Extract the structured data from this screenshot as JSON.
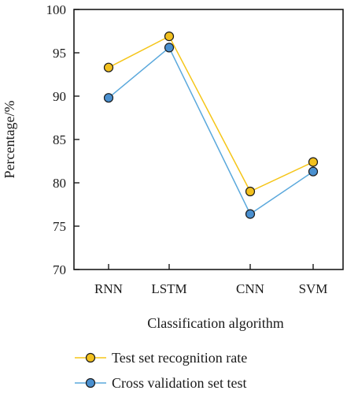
{
  "chart_data": {
    "type": "line",
    "categories": [
      "RNN",
      "LSTM",
      "CNN",
      "SVM"
    ],
    "series": [
      {
        "name": "Test set recognition rate",
        "values": [
          93.3,
          96.9,
          79.0,
          82.4
        ],
        "line_color": "#f5c518",
        "marker_color": "#f2c01e"
      },
      {
        "name": "Cross validation set test",
        "values": [
          89.8,
          95.6,
          76.4,
          81.3
        ],
        "line_color": "#5aa8dc",
        "marker_color": "#4a90d0"
      }
    ],
    "title": "",
    "xlabel": "Classification algorithm",
    "ylabel": "Percentage/%",
    "ylim": [
      70,
      100
    ],
    "yticks": [
      "70",
      "75",
      "80",
      "85",
      "90",
      "95",
      "100"
    ],
    "grid": false,
    "legend_position": "bottom"
  }
}
